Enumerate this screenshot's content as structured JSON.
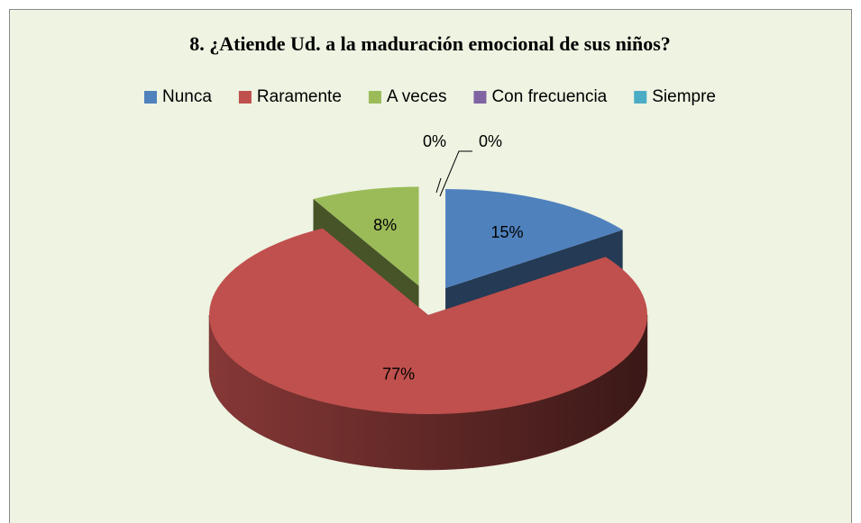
{
  "chart_data": {
    "type": "pie",
    "title": "8. ¿Atiende Ud. a la maduración  emocional  de sus niños?",
    "categories": [
      "Nunca",
      "Raramente",
      "A veces",
      "Con frecuencia",
      "Siempre"
    ],
    "values": [
      15,
      77,
      8,
      0,
      0
    ],
    "value_labels": [
      "15%",
      "77%",
      "8%",
      "0%",
      "0%"
    ],
    "colors": [
      "#4f81bd",
      "#c0504d",
      "#9bbb59",
      "#8064a2",
      "#4bacc6"
    ],
    "legend": "top"
  }
}
